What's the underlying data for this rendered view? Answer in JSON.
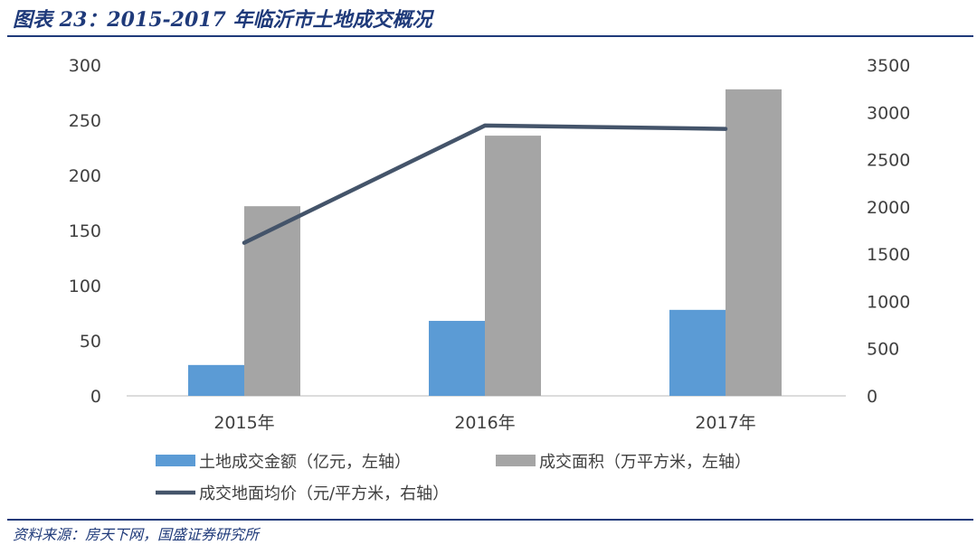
{
  "title": "图表 23：2015-2017 年临沂市土地成交概况",
  "source": "资料来源：房天下网，国盛证券研究所",
  "chart_data": {
    "type": "bar",
    "categories": [
      "2015年",
      "2016年",
      "2017年"
    ],
    "series": [
      {
        "name": "土地成交金额（亿元，左轴）",
        "kind": "bar",
        "axis": "left",
        "color": "#5b9bd5",
        "values": [
          28,
          68,
          78
        ]
      },
      {
        "name": "成交面积（万平方米，左轴）",
        "kind": "bar",
        "axis": "left",
        "color": "#a5a5a5",
        "values": [
          172,
          236,
          278
        ]
      },
      {
        "name": "成交地面均价（元/平方米，右轴）",
        "kind": "line",
        "axis": "right",
        "color": "#44546a",
        "values": [
          1620,
          2860,
          2825
        ]
      }
    ],
    "ylim_left": [
      0,
      300
    ],
    "yticks_left": [
      0,
      50,
      100,
      150,
      200,
      250,
      300
    ],
    "ylim_right": [
      0,
      3500
    ],
    "yticks_right": [
      0,
      500,
      1000,
      1500,
      2000,
      2500,
      3000,
      3500
    ],
    "grid": false,
    "legend_position": "bottom"
  }
}
